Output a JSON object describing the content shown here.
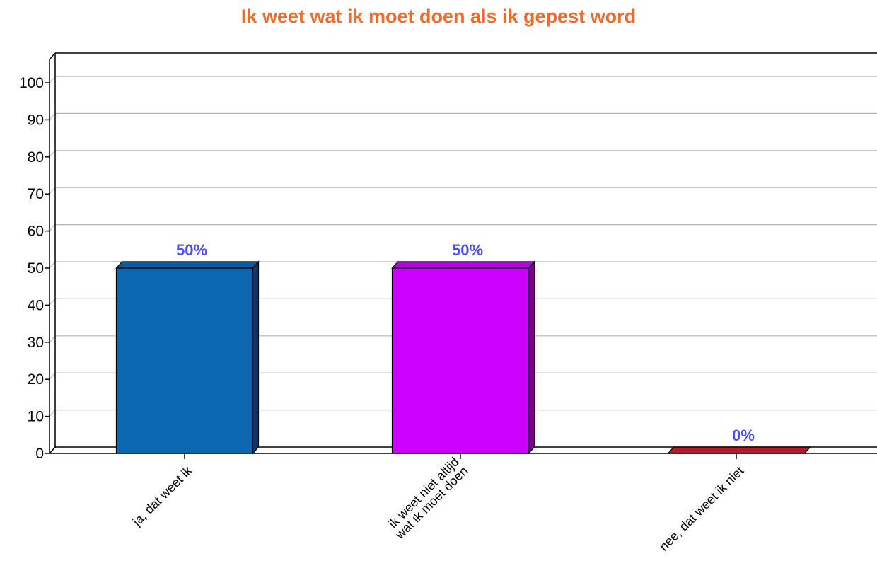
{
  "colors": {
    "title": "#f26a2a",
    "data_label": "#4b4bff",
    "grid": "#b3b3b3",
    "axis": "#000000"
  },
  "chart_data": {
    "type": "bar",
    "title": "Ik weet wat ik moet doen als ik gepest word",
    "xlabel": "",
    "ylabel": "",
    "ylim": [
      0,
      100
    ],
    "yticks": [
      "0",
      "10",
      "20",
      "30",
      "40",
      "50",
      "60",
      "70",
      "80",
      "90",
      "100"
    ],
    "grid": true,
    "legend": "none",
    "categories": [
      [
        "ja, dat weet ik"
      ],
      [
        "ik weet niet altijd",
        "wat ik moet doen"
      ],
      [
        "nee, dat weet ik niet"
      ]
    ],
    "values": [
      50,
      50,
      0
    ],
    "data_labels": [
      "50%",
      "50%",
      "0%"
    ],
    "bar_colors": [
      "#0b67b0",
      "#cc00ff",
      "#c8202f"
    ],
    "bar_side_colors": [
      "#0a3a66",
      "#7a0099",
      "#7a1019"
    ],
    "bar_top_colors": [
      "#0d5a9a",
      "#b300e0",
      "#b01c29"
    ]
  }
}
